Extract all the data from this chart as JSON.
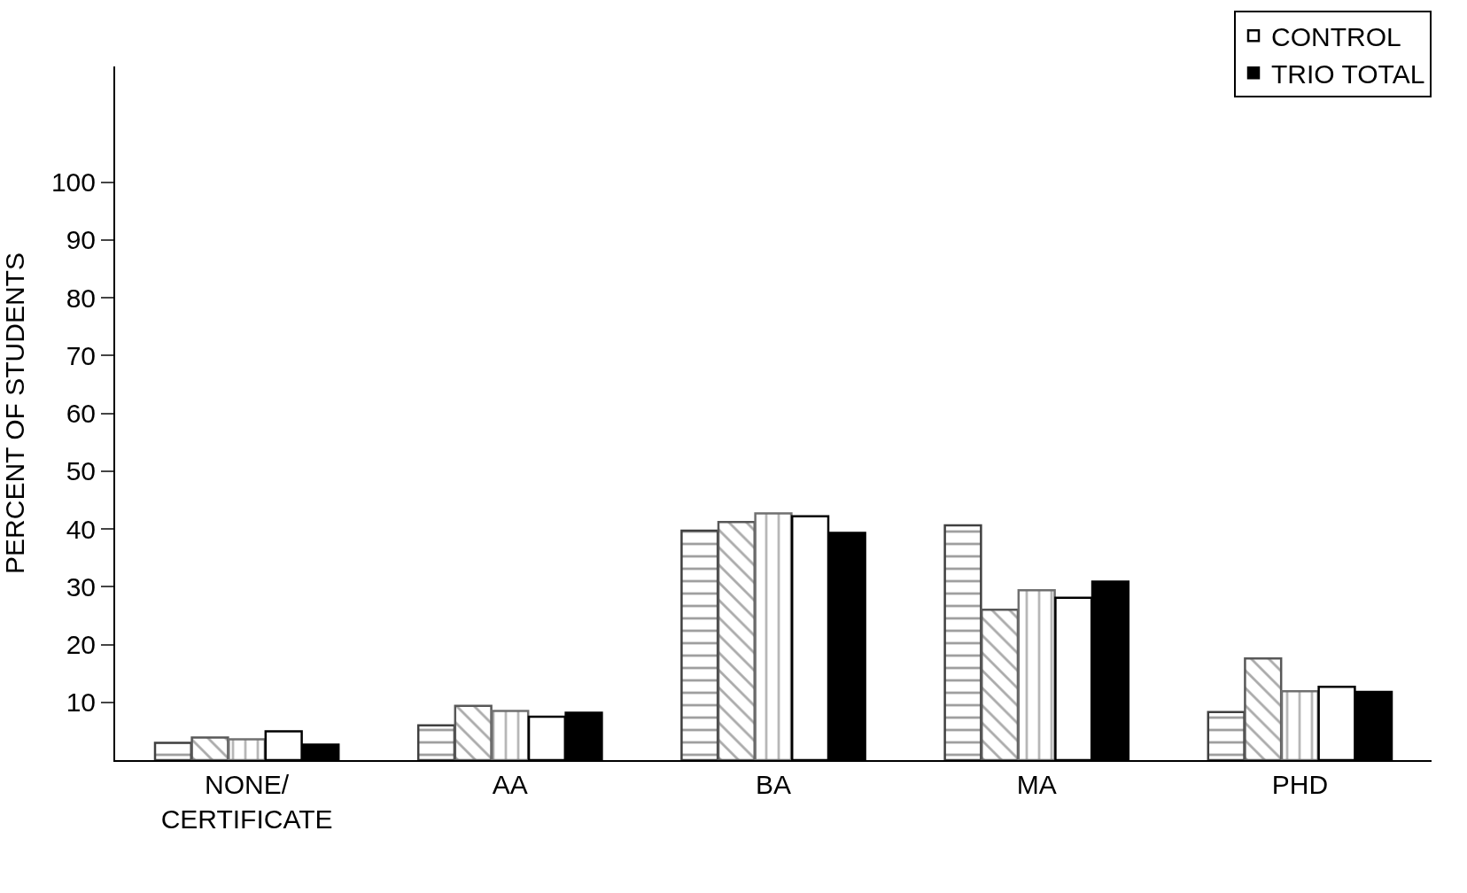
{
  "chart_data": {
    "type": "bar",
    "ylabel": "PERCENT OF STUDENTS",
    "categories": [
      "NONE/\nCERTIFICATE",
      "AA",
      "BA",
      "MA",
      "PHD"
    ],
    "series": [
      {
        "color": "#404040",
        "values": [
          3.0,
          6.0,
          39.7,
          40.6,
          8.3
        ]
      },
      {
        "color": "#585858",
        "values": [
          3.9,
          9.4,
          41.2,
          26.0,
          17.6
        ]
      },
      {
        "color": "#707070",
        "values": [
          3.6,
          8.5,
          42.7,
          29.4,
          11.9
        ]
      },
      {
        "name": "CONTROL",
        "color": "#ffffff",
        "values": [
          5.0,
          7.5,
          42.2,
          28.1,
          12.7
        ]
      },
      {
        "name": "TRIO TOTAL",
        "color": "#000000",
        "values": [
          2.7,
          8.2,
          39.3,
          30.9,
          11.8
        ]
      }
    ],
    "ylim": [
      0,
      120
    ],
    "yticks": [
      10,
      20,
      30,
      40,
      50,
      60,
      70,
      80,
      90,
      100
    ],
    "grid": false,
    "legend": "top right"
  }
}
